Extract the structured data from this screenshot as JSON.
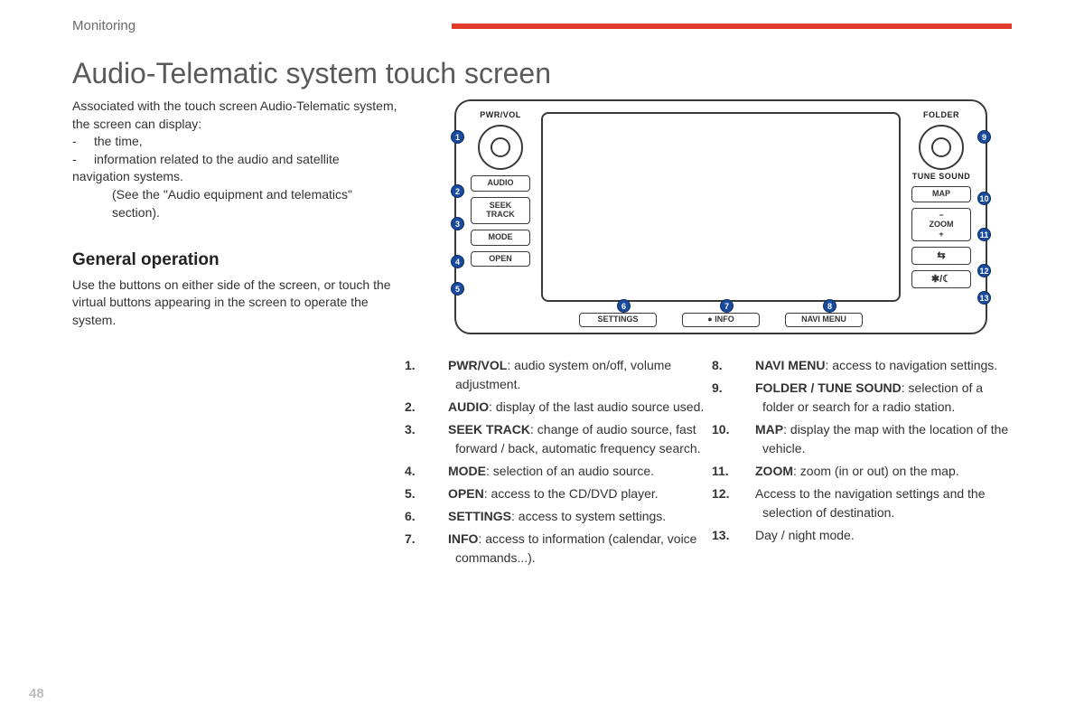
{
  "header": {
    "section": "Monitoring",
    "accent_color": "#e03a2a"
  },
  "title": "Audio-Telematic system touch screen",
  "intro": {
    "lead": "Associated with the touch screen Audio-Telematic system, the screen can display:",
    "items": [
      "the time,",
      "information related to the audio and satellite navigation systems."
    ],
    "note": "(See the \"Audio equipment and telematics\" section)."
  },
  "general": {
    "heading": "General operation",
    "text": "Use the buttons on either side of the screen, or touch the virtual buttons appearing in the screen to operate the system."
  },
  "device": {
    "left_knob_label": "PWR/VOL",
    "right_knob_label": "FOLDER",
    "right_knob_sublabel": "TUNE SOUND",
    "left_buttons": [
      "AUDIO",
      "SEEK\nTRACK",
      "MODE",
      "OPEN"
    ],
    "right_buttons": [
      "MAP",
      "−\nZOOM\n+",
      "⇆",
      "✱/☾"
    ],
    "bottom_buttons": [
      "SETTINGS",
      "● INFO",
      "NAVI MENU"
    ],
    "callout_color": "#184a9e"
  },
  "definitions_left": [
    {
      "n": "1.",
      "term": "PWR/VOL",
      "desc": ": audio system on/off, volume adjustment."
    },
    {
      "n": "2.",
      "term": "AUDIO",
      "desc": ": display of the last audio source used."
    },
    {
      "n": "3.",
      "term": "SEEK TRACK",
      "desc": ": change of audio source, fast forward / back, automatic frequency search."
    },
    {
      "n": "4.",
      "term": "MODE",
      "desc": ": selection of an audio source."
    },
    {
      "n": "5.",
      "term": "OPEN",
      "desc": ": access to the CD/DVD player."
    },
    {
      "n": "6.",
      "term": "SETTINGS",
      "desc": ": access to system settings."
    },
    {
      "n": "7.",
      "term": "INFO",
      "desc": ": access to information (calendar, voice commands...)."
    }
  ],
  "definitions_right": [
    {
      "n": "8.",
      "term": "NAVI MENU",
      "desc": ": access to navigation settings."
    },
    {
      "n": "9.",
      "term": "FOLDER / TUNE SOUND",
      "desc": ": selection of a folder or search for a radio station."
    },
    {
      "n": "10.",
      "term": "MAP",
      "desc": ": display the map with the location of the vehicle."
    },
    {
      "n": "11.",
      "term": "ZOOM",
      "desc": ": zoom (in or out) on the map."
    },
    {
      "n": "12.",
      "term": "",
      "desc": "Access to the navigation settings and the selection of destination."
    },
    {
      "n": "13.",
      "term": "",
      "desc": "Day / night mode."
    }
  ],
  "page_number": "48"
}
